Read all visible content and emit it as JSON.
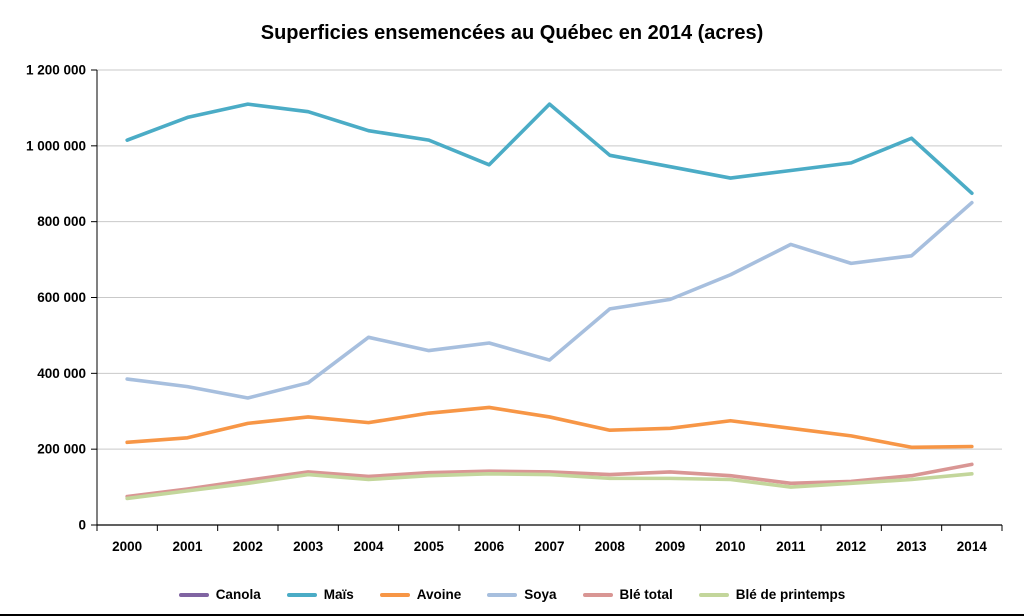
{
  "chart_data": {
    "type": "line",
    "title": "Superficies ensemencées au Québec en 2014 (acres)",
    "xlabel": "",
    "ylabel": "",
    "ylim": [
      0,
      1200000
    ],
    "grid": "horizontal",
    "legend_position": "bottom",
    "colors": {
      "grid": "#c9c9c9",
      "axis": "#000000",
      "background": "#ffffff"
    },
    "y_ticks": [
      {
        "value": 0,
        "label": "0"
      },
      {
        "value": 200000,
        "label": "200 000"
      },
      {
        "value": 400000,
        "label": "400 000"
      },
      {
        "value": 600000,
        "label": "600 000"
      },
      {
        "value": 800000,
        "label": "800 000"
      },
      {
        "value": 1000000,
        "label": "1 000 000"
      },
      {
        "value": 1200000,
        "label": "1 200 000"
      }
    ],
    "categories": [
      "2000",
      "2001",
      "2002",
      "2003",
      "2004",
      "2005",
      "2006",
      "2007",
      "2008",
      "2009",
      "2010",
      "2011",
      "2012",
      "2013",
      "2014"
    ],
    "series": [
      {
        "key": "canola",
        "name": "Canola",
        "color": "#8064a2",
        "values": null
      },
      {
        "key": "mais",
        "name": "Maïs",
        "color": "#4bacc6",
        "values": [
          1015000,
          1075000,
          1110000,
          1090000,
          1040000,
          1015000,
          950000,
          1110000,
          975000,
          945000,
          915000,
          935000,
          955000,
          1020000,
          875000
        ]
      },
      {
        "key": "avoine",
        "name": "Avoine",
        "color": "#f79646",
        "values": [
          218000,
          230000,
          268000,
          285000,
          270000,
          295000,
          310000,
          285000,
          250000,
          255000,
          275000,
          255000,
          235000,
          205000,
          207000
        ]
      },
      {
        "key": "soya",
        "name": "Soya",
        "color": "#a7bfde",
        "values": [
          385000,
          365000,
          335000,
          375000,
          495000,
          460000,
          480000,
          435000,
          570000,
          595000,
          660000,
          740000,
          690000,
          710000,
          850000
        ]
      },
      {
        "key": "ble-total",
        "name": "Blé total",
        "color": "#d99694",
        "values": [
          75000,
          95000,
          118000,
          140000,
          128000,
          138000,
          142000,
          140000,
          133000,
          140000,
          130000,
          110000,
          115000,
          130000,
          160000
        ]
      },
      {
        "key": "ble-printemps",
        "name": "Blé de printemps",
        "color": "#c3d69b",
        "values": [
          70000,
          90000,
          110000,
          133000,
          120000,
          130000,
          135000,
          133000,
          123000,
          123000,
          120000,
          100000,
          110000,
          120000,
          135000
        ]
      }
    ]
  }
}
